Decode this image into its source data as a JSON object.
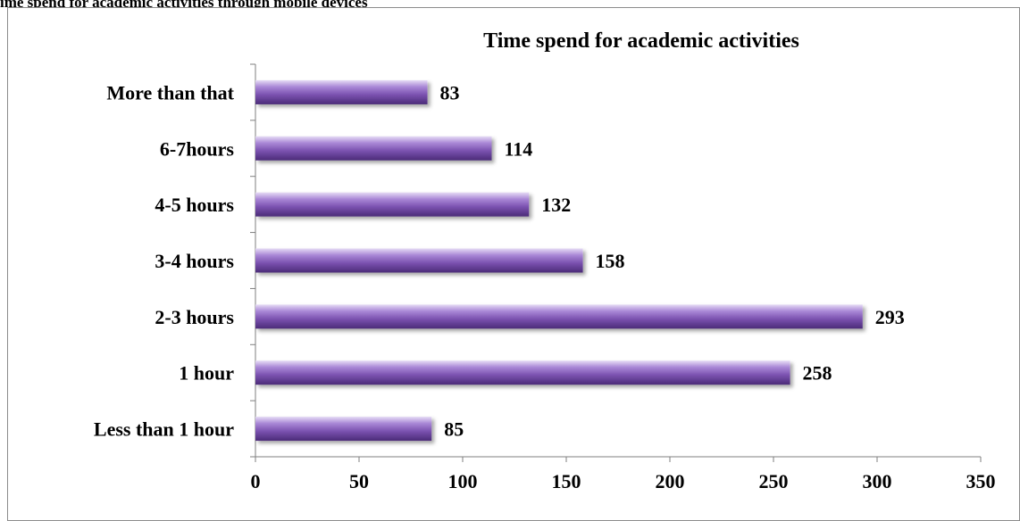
{
  "caption": "ime spend for academic activities through  mobile devices",
  "chart_data": {
    "type": "bar",
    "orientation": "horizontal",
    "title": "Time spend for academic activities",
    "categories": [
      "Less than 1 hour",
      "1 hour",
      "2-3 hours",
      "3-4 hours",
      "4-5 hours",
      "6-7hours",
      "More than that"
    ],
    "values": [
      85,
      258,
      293,
      158,
      132,
      114,
      83
    ],
    "xlim": [
      0,
      350
    ],
    "xticks": [
      0,
      50,
      100,
      150,
      200,
      250,
      300,
      350
    ],
    "xlabel": "",
    "ylabel": "",
    "grid": false,
    "legend": "none",
    "bar_color": "#7b52b0"
  }
}
